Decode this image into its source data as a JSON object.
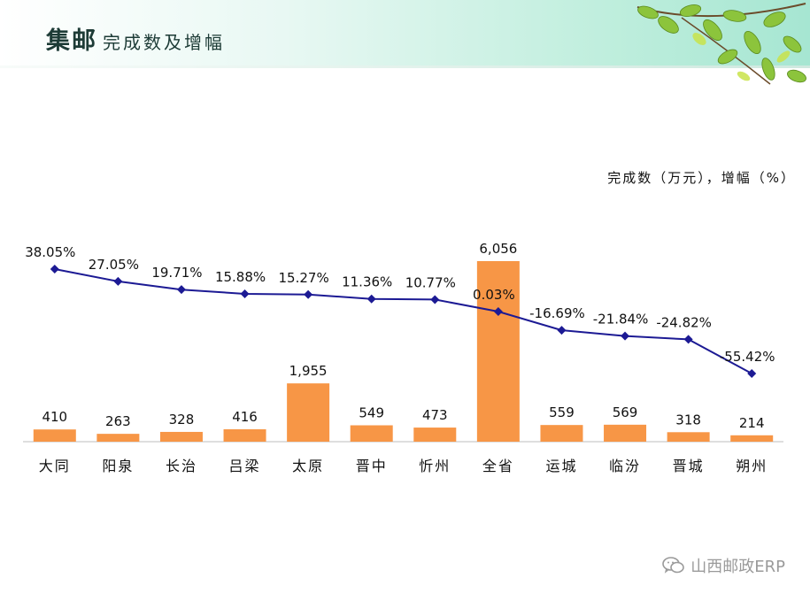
{
  "header": {
    "title_main": "集邮",
    "title_sub": "完成数及增幅"
  },
  "units_label": "完成数（万元），增幅（%）",
  "watermark": {
    "text": "山西邮政ERP",
    "icon": "wechat-icon"
  },
  "colors": {
    "bar": "#f79646",
    "line": "#1c1a94",
    "text": "#111111"
  },
  "chart_data": {
    "type": "bar",
    "categories": [
      "大同",
      "阳泉",
      "长治",
      "吕梁",
      "太原",
      "晋中",
      "忻州",
      "全省",
      "运城",
      "临汾",
      "晋城",
      "朔州"
    ],
    "series": [
      {
        "name": "完成数（万元）",
        "type": "bar",
        "values": [
          410,
          263,
          328,
          416,
          1955,
          549,
          473,
          6056,
          559,
          569,
          318,
          214
        ],
        "labels": [
          "410",
          "263",
          "328",
          "416",
          "1,955",
          "549",
          "473",
          "6,056",
          "559",
          "569",
          "318",
          "214"
        ]
      },
      {
        "name": "增幅（%）",
        "type": "line",
        "values": [
          38.05,
          27.05,
          19.71,
          15.88,
          15.27,
          11.36,
          10.77,
          0.03,
          -16.69,
          -21.84,
          -24.82,
          -55.42
        ],
        "labels": [
          "38.05%",
          "27.05%",
          "19.71%",
          "15.88%",
          "15.27%",
          "11.36%",
          "10.77%",
          "0.03%",
          "-16.69%",
          "-21.84%",
          "-24.82%",
          "-55.42%"
        ]
      }
    ],
    "title": "集邮完成数及增幅",
    "ylabel": "完成数（万元），增幅（%）",
    "bar_ylim": [
      0,
      6056
    ],
    "line_ylim": [
      -55.42,
      38.05
    ],
    "grid": false,
    "legend": "none"
  }
}
